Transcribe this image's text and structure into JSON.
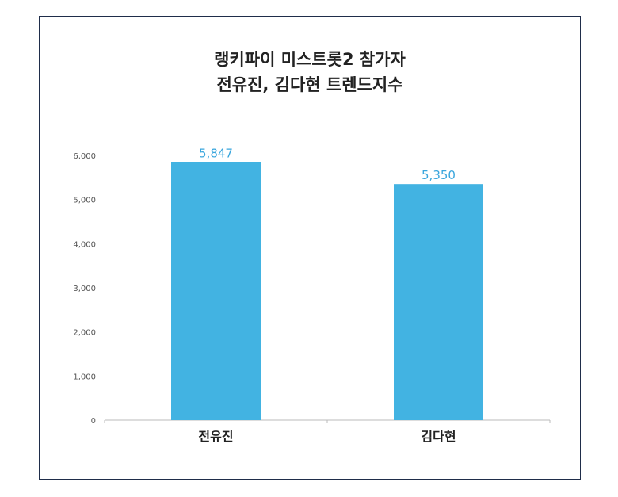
{
  "chart_data": {
    "type": "bar",
    "title_lines": [
      "랭키파이 미스트롯2 참가자",
      "전유진, 김다현 트렌드지수"
    ],
    "categories": [
      "전유진",
      "김다현"
    ],
    "values": [
      5847,
      5350
    ],
    "value_labels": [
      "5,847",
      "5,350"
    ],
    "ylim": [
      0,
      6000
    ],
    "yticks": [
      0,
      1000,
      2000,
      3000,
      4000,
      5000,
      6000
    ],
    "ytick_labels": [
      "0",
      "1,000",
      "2,000",
      "3,000",
      "4,000",
      "5,000",
      "6,000"
    ],
    "bar_color": "#42b3e2",
    "value_label_color": "#3aa6dd",
    "grid": false,
    "legend": "none"
  }
}
